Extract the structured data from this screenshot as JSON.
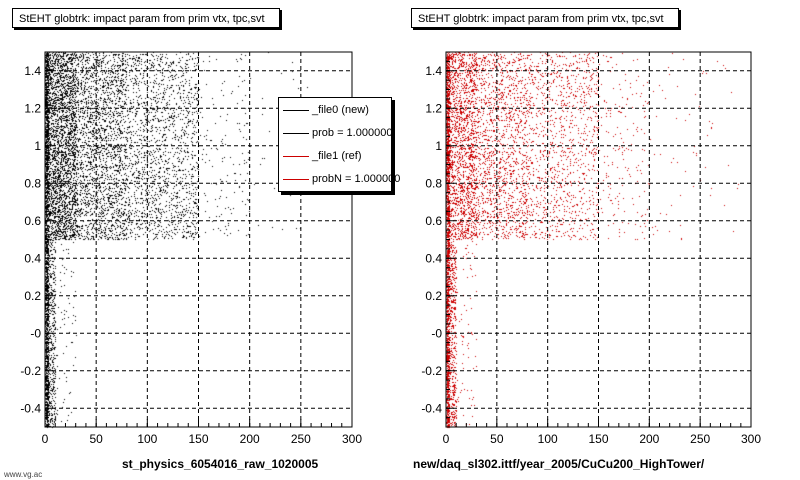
{
  "footer_text": "www.vg.ac",
  "chart_data": [
    {
      "type": "scatter",
      "title": "StEHT globtrk: impact param from prim vtx, tpc,svt",
      "xlabel": "st_physics_6054016_raw_1020005",
      "ylabel": "",
      "xlim": [
        0,
        300
      ],
      "ylim": [
        -0.5,
        1.5
      ],
      "xticks": [
        "0",
        "50",
        "100",
        "150",
        "200",
        "250",
        "300"
      ],
      "yticks": [
        "-0.4",
        "-0.2",
        "-0",
        "0.2",
        "0.4",
        "0.6",
        "0.8",
        "1",
        "1.2",
        "1.4"
      ],
      "grid": true,
      "marker_color": "#000000",
      "density": [
        {
          "x": [
            0,
            3
          ],
          "y": [
            -0.5,
            1.5
          ],
          "n": 1800
        },
        {
          "x": [
            3,
            10
          ],
          "y": [
            -0.5,
            0.5
          ],
          "n": 420
        },
        {
          "x": [
            10,
            30
          ],
          "y": [
            -0.5,
            0.5
          ],
          "n": 70
        },
        {
          "x": [
            3,
            30
          ],
          "y": [
            0.5,
            1.5
          ],
          "n": 2600
        },
        {
          "x": [
            30,
            80
          ],
          "y": [
            0.5,
            1.5
          ],
          "n": 2200
        },
        {
          "x": [
            80,
            150
          ],
          "y": [
            0.5,
            1.5
          ],
          "n": 1600
        },
        {
          "x": [
            150,
            200
          ],
          "y": [
            0.5,
            1.5
          ],
          "n": 140
        },
        {
          "x": [
            200,
            260
          ],
          "y": [
            0.5,
            1.5
          ],
          "n": 30
        }
      ],
      "legend": {
        "placement": "top-right",
        "entries": [
          {
            "label": "_file0 (new)",
            "color": "#000000"
          },
          {
            "label": "prob = 1.000000",
            "color": "#000000"
          },
          {
            "label": "_file1 (ref)",
            "color": "#cc0000"
          },
          {
            "label": "probN = 1.000000",
            "color": "#cc0000"
          }
        ]
      }
    },
    {
      "type": "scatter",
      "title": "StEHT globtrk: impact param from prim vtx, tpc,svt",
      "xlabel": "new/daq_sl302.ittf/year_2005/CuCu200_HighTower/",
      "ylabel": "",
      "xlim": [
        0,
        300
      ],
      "ylim": [
        -0.5,
        1.5
      ],
      "xticks": [
        "0",
        "50",
        "100",
        "150",
        "200",
        "250",
        "300"
      ],
      "yticks": [
        "-0.4",
        "-0.2",
        "-0",
        "0.2",
        "0.4",
        "0.6",
        "0.8",
        "1",
        "1.2",
        "1.4"
      ],
      "grid": true,
      "marker_color": "#cc0000",
      "density": [
        {
          "x": [
            0,
            3
          ],
          "y": [
            -0.5,
            1.5
          ],
          "n": 1800
        },
        {
          "x": [
            3,
            10
          ],
          "y": [
            -0.5,
            0.5
          ],
          "n": 420
        },
        {
          "x": [
            10,
            30
          ],
          "y": [
            -0.5,
            0.5
          ],
          "n": 70
        },
        {
          "x": [
            3,
            30
          ],
          "y": [
            0.5,
            1.5
          ],
          "n": 1700
        },
        {
          "x": [
            30,
            80
          ],
          "y": [
            0.5,
            1.5
          ],
          "n": 1400
        },
        {
          "x": [
            80,
            150
          ],
          "y": [
            0.5,
            1.5
          ],
          "n": 1100
        },
        {
          "x": [
            150,
            200
          ],
          "y": [
            0.5,
            1.5
          ],
          "n": 180
        },
        {
          "x": [
            200,
            290
          ],
          "y": [
            0.5,
            1.5
          ],
          "n": 60
        }
      ]
    }
  ]
}
